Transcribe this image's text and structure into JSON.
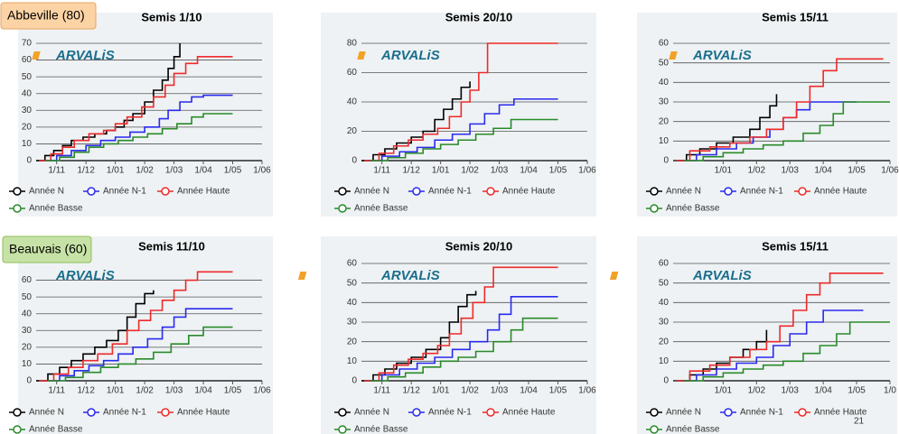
{
  "groups": [
    "Abbeville (80)",
    "Beauvais (60)"
  ],
  "logo": "ARVALiS",
  "page_number": "21",
  "chart_data": [
    {
      "type": "line",
      "step": true,
      "title": "Semis 1/10",
      "ylim": [
        0,
        70
      ],
      "yticks": [
        0,
        10,
        20,
        30,
        40,
        50,
        60,
        70
      ],
      "xlim": [
        0.3,
        8
      ],
      "xticks": [
        {
          "value": 1,
          "label": "1/11"
        },
        {
          "value": 2,
          "label": "1/12"
        },
        {
          "value": 3,
          "label": "1/01"
        },
        {
          "value": 4,
          "label": "1/02"
        },
        {
          "value": 5,
          "label": "1/03"
        },
        {
          "value": 6,
          "label": "1/04"
        },
        {
          "value": 7,
          "label": "1/05"
        },
        {
          "value": 8,
          "label": "1/06"
        }
      ],
      "grid": true,
      "series": [
        {
          "name": "Année N",
          "color": "#000000",
          "x": [
            0.3,
            0.6,
            0.9,
            1.2,
            1.5,
            1.9,
            2.3,
            2.7,
            3.0,
            3.3,
            3.6,
            4.0,
            4.3,
            4.6,
            4.8,
            5.0,
            5.2
          ],
          "values": [
            0,
            3,
            6,
            9,
            12,
            14,
            16,
            18,
            20,
            24,
            28,
            35,
            42,
            48,
            55,
            62,
            70
          ]
        },
        {
          "name": "Année N-1",
          "color": "#2a2aee",
          "x": [
            0.5,
            1.0,
            1.5,
            2.0,
            2.5,
            3.0,
            3.5,
            4.0,
            4.5,
            4.8,
            5.2,
            5.6,
            6.0,
            7.0
          ],
          "values": [
            0,
            3,
            6,
            9,
            12,
            14,
            17,
            20,
            25,
            30,
            35,
            38,
            39,
            39
          ]
        },
        {
          "name": "Année Haute",
          "color": "#ee2a2a",
          "x": [
            0.4,
            0.8,
            1.2,
            1.6,
            2.1,
            2.6,
            3.0,
            3.4,
            3.9,
            4.3,
            4.7,
            5.0,
            5.4,
            5.8,
            7.0
          ],
          "values": [
            0,
            4,
            8,
            12,
            16,
            18,
            22,
            26,
            32,
            38,
            45,
            52,
            58,
            62,
            62
          ]
        },
        {
          "name": "Année Basse",
          "color": "#2a8a2a",
          "x": [
            0.6,
            1.1,
            1.6,
            2.1,
            2.6,
            3.1,
            3.6,
            4.1,
            4.6,
            5.1,
            5.6,
            6.0,
            7.0
          ],
          "values": [
            0,
            2,
            5,
            8,
            10,
            12,
            14,
            16,
            19,
            22,
            26,
            28,
            28
          ]
        }
      ]
    },
    {
      "type": "line",
      "step": true,
      "title": "Semis 20/10",
      "ylim": [
        0,
        80
      ],
      "yticks": [
        0,
        20,
        40,
        60,
        80
      ],
      "xlim": [
        0.3,
        8
      ],
      "xticks": [
        {
          "value": 1,
          "label": "1/11"
        },
        {
          "value": 2,
          "label": "1/12"
        },
        {
          "value": 3,
          "label": "1/01"
        },
        {
          "value": 4,
          "label": "1/02"
        },
        {
          "value": 5,
          "label": "1/03"
        },
        {
          "value": 6,
          "label": "1/04"
        },
        {
          "value": 7,
          "label": "1/05"
        },
        {
          "value": 8,
          "label": "1/06"
        }
      ],
      "grid": true,
      "series": [
        {
          "name": "Année N",
          "color": "#000000",
          "x": [
            0.3,
            0.7,
            1.1,
            1.5,
            2.0,
            2.4,
            2.8,
            3.1,
            3.4,
            3.7,
            4.0
          ],
          "values": [
            0,
            4,
            8,
            12,
            16,
            20,
            28,
            35,
            42,
            50,
            54
          ]
        },
        {
          "name": "Année N-1",
          "color": "#2a2aee",
          "x": [
            0.5,
            1.0,
            1.6,
            2.2,
            2.8,
            3.4,
            4.0,
            4.5,
            5.0,
            5.5,
            7.0
          ],
          "values": [
            0,
            3,
            6,
            9,
            14,
            18,
            25,
            32,
            38,
            42,
            42
          ]
        },
        {
          "name": "Année Haute",
          "color": "#ee2a2a",
          "x": [
            0.4,
            0.9,
            1.4,
            1.9,
            2.4,
            2.9,
            3.3,
            3.7,
            4.0,
            4.3,
            4.6,
            7.0
          ],
          "values": [
            0,
            5,
            10,
            14,
            18,
            22,
            30,
            40,
            48,
            60,
            80,
            80
          ]
        },
        {
          "name": "Année Basse",
          "color": "#2a8a2a",
          "x": [
            0.6,
            1.2,
            1.8,
            2.4,
            3.0,
            3.6,
            4.2,
            4.8,
            5.4,
            7.0
          ],
          "values": [
            0,
            2,
            5,
            8,
            11,
            14,
            18,
            22,
            28,
            28
          ]
        }
      ]
    },
    {
      "type": "line",
      "step": true,
      "title": "Semis 15/11",
      "ylim": [
        0,
        60
      ],
      "yticks": [
        0,
        10,
        20,
        30,
        40,
        50,
        60
      ],
      "xlim": [
        1.5,
        8
      ],
      "xticks": [
        {
          "value": 3,
          "label": "1/01"
        },
        {
          "value": 4,
          "label": "1/02"
        },
        {
          "value": 5,
          "label": "1/03"
        },
        {
          "value": 6,
          "label": "1/04"
        },
        {
          "value": 7,
          "label": "1/05"
        },
        {
          "value": 8,
          "label": "1/06"
        }
      ],
      "grid": true,
      "series": [
        {
          "name": "Année N",
          "color": "#000000",
          "x": [
            1.6,
            1.9,
            2.3,
            2.8,
            3.3,
            3.8,
            4.1,
            4.4,
            4.6
          ],
          "values": [
            0,
            3,
            6,
            9,
            12,
            16,
            22,
            28,
            34
          ]
        },
        {
          "name": "Année N-1",
          "color": "#2a2aee",
          "x": [
            1.7,
            2.2,
            2.8,
            3.4,
            3.9,
            4.4,
            4.8,
            5.2,
            5.6,
            7.0
          ],
          "values": [
            0,
            3,
            6,
            9,
            12,
            16,
            22,
            26,
            30,
            30
          ]
        },
        {
          "name": "Année Haute",
          "color": "#ee2a2a",
          "x": [
            1.6,
            2.0,
            2.6,
            3.2,
            3.8,
            4.3,
            4.8,
            5.2,
            5.6,
            6.0,
            6.4,
            7.8
          ],
          "values": [
            0,
            5,
            7,
            9,
            12,
            16,
            22,
            30,
            38,
            46,
            52,
            52
          ]
        },
        {
          "name": "Année Basse",
          "color": "#2a8a2a",
          "x": [
            1.8,
            2.4,
            3.0,
            3.6,
            4.2,
            4.8,
            5.4,
            5.9,
            6.3,
            6.6,
            8.0
          ],
          "values": [
            0,
            2,
            4,
            6,
            8,
            10,
            14,
            18,
            24,
            30,
            30
          ]
        }
      ]
    },
    {
      "type": "line",
      "step": true,
      "title": "Semis 11/10",
      "ylim": [
        0,
        70
      ],
      "yticks": [
        0,
        10,
        20,
        30,
        40,
        50,
        60
      ],
      "xlim": [
        0.3,
        8
      ],
      "xticks": [
        {
          "value": 1,
          "label": "1/11"
        },
        {
          "value": 2,
          "label": "1/12"
        },
        {
          "value": 3,
          "label": "1/01"
        },
        {
          "value": 4,
          "label": "1/02"
        },
        {
          "value": 5,
          "label": "1/03"
        },
        {
          "value": 6,
          "label": "1/04"
        },
        {
          "value": 7,
          "label": "1/05"
        },
        {
          "value": 8,
          "label": "1/06"
        }
      ],
      "grid": true,
      "series": [
        {
          "name": "Année N",
          "color": "#000000",
          "x": [
            0.3,
            0.7,
            1.1,
            1.5,
            1.9,
            2.3,
            2.7,
            3.1,
            3.4,
            3.7,
            4.0,
            4.3
          ],
          "values": [
            0,
            4,
            8,
            12,
            16,
            20,
            24,
            30,
            38,
            46,
            52,
            54
          ]
        },
        {
          "name": "Année N-1",
          "color": "#2a2aee",
          "x": [
            0.6,
            1.1,
            1.6,
            2.1,
            2.6,
            3.1,
            3.6,
            4.1,
            4.6,
            5.0,
            5.4,
            7.0
          ],
          "values": [
            0,
            3,
            6,
            9,
            12,
            16,
            20,
            25,
            32,
            38,
            43,
            43
          ]
        },
        {
          "name": "Année Haute",
          "color": "#ee2a2a",
          "x": [
            0.4,
            0.9,
            1.4,
            1.9,
            2.4,
            2.9,
            3.4,
            3.8,
            4.2,
            4.6,
            5.0,
            5.4,
            5.8,
            7.0
          ],
          "values": [
            0,
            4,
            8,
            12,
            16,
            22,
            30,
            36,
            42,
            48,
            54,
            60,
            65,
            65
          ]
        },
        {
          "name": "Année Basse",
          "color": "#2a8a2a",
          "x": [
            0.7,
            1.3,
            1.9,
            2.5,
            3.1,
            3.7,
            4.3,
            4.9,
            5.5,
            6.0,
            7.0
          ],
          "values": [
            0,
            2,
            5,
            8,
            10,
            13,
            17,
            22,
            27,
            32,
            32
          ]
        }
      ]
    },
    {
      "type": "line",
      "step": true,
      "title": "Semis 20/10",
      "ylim": [
        0,
        60
      ],
      "yticks": [
        0,
        10,
        20,
        30,
        40,
        50,
        60
      ],
      "xlim": [
        0.3,
        8
      ],
      "xticks": [
        {
          "value": 1,
          "label": "1/11"
        },
        {
          "value": 2,
          "label": "1/12"
        },
        {
          "value": 3,
          "label": "1/01"
        },
        {
          "value": 4,
          "label": "1/02"
        },
        {
          "value": 5,
          "label": "1/03"
        },
        {
          "value": 6,
          "label": "1/04"
        },
        {
          "value": 7,
          "label": "1/05"
        },
        {
          "value": 8,
          "label": "1/06"
        }
      ],
      "grid": true,
      "series": [
        {
          "name": "Année N",
          "color": "#000000",
          "x": [
            0.3,
            0.7,
            1.1,
            1.5,
            2.0,
            2.5,
            3.0,
            3.3,
            3.6,
            3.9,
            4.2
          ],
          "values": [
            0,
            3,
            6,
            9,
            12,
            16,
            22,
            30,
            38,
            44,
            46
          ]
        },
        {
          "name": "Année N-1",
          "color": "#2a2aee",
          "x": [
            0.5,
            1.0,
            1.6,
            2.2,
            2.8,
            3.4,
            4.0,
            4.6,
            5.0,
            5.4,
            7.0
          ],
          "values": [
            0,
            3,
            6,
            9,
            12,
            16,
            20,
            26,
            34,
            43,
            43
          ]
        },
        {
          "name": "Année Haute",
          "color": "#ee2a2a",
          "x": [
            0.4,
            0.9,
            1.4,
            1.9,
            2.4,
            2.9,
            3.3,
            3.7,
            4.1,
            4.5,
            4.8,
            7.0
          ],
          "values": [
            0,
            4,
            8,
            11,
            14,
            18,
            24,
            32,
            40,
            48,
            58,
            58
          ]
        },
        {
          "name": "Année Basse",
          "color": "#2a8a2a",
          "x": [
            0.6,
            1.2,
            1.8,
            2.4,
            3.0,
            3.6,
            4.2,
            4.8,
            5.4,
            5.8,
            7.0
          ],
          "values": [
            0,
            2,
            4,
            7,
            10,
            12,
            15,
            20,
            26,
            32,
            32
          ]
        }
      ]
    },
    {
      "type": "line",
      "step": true,
      "title": "Semis 15/11",
      "ylim": [
        0,
        60
      ],
      "yticks": [
        0,
        10,
        20,
        30,
        40,
        50,
        60
      ],
      "xlim": [
        1.5,
        8
      ],
      "xticks": [
        {
          "value": 3,
          "label": "1/01"
        },
        {
          "value": 4,
          "label": "1/02"
        },
        {
          "value": 5,
          "label": "1/03"
        },
        {
          "value": 6,
          "label": "1/04"
        },
        {
          "value": 7,
          "label": "1/05"
        },
        {
          "value": 8,
          "label": "1/0"
        }
      ],
      "grid": true,
      "series": [
        {
          "name": "Année N",
          "color": "#000000",
          "x": [
            1.6,
            2.0,
            2.4,
            2.8,
            3.2,
            3.6,
            4.0,
            4.3
          ],
          "values": [
            0,
            3,
            6,
            9,
            12,
            16,
            20,
            26
          ]
        },
        {
          "name": "Année N-1",
          "color": "#2a2aee",
          "x": [
            1.7,
            2.2,
            2.8,
            3.4,
            4.0,
            4.5,
            5.0,
            5.5,
            6.0,
            7.2
          ],
          "values": [
            0,
            3,
            6,
            9,
            12,
            18,
            24,
            30,
            36,
            36
          ]
        },
        {
          "name": "Année Haute",
          "color": "#ee2a2a",
          "x": [
            1.6,
            2.0,
            2.6,
            3.2,
            3.8,
            4.3,
            4.7,
            5.1,
            5.5,
            5.9,
            6.2,
            7.8
          ],
          "values": [
            0,
            5,
            8,
            12,
            16,
            20,
            28,
            36,
            44,
            50,
            55,
            55
          ]
        },
        {
          "name": "Année Basse",
          "color": "#2a8a2a",
          "x": [
            1.8,
            2.4,
            3.0,
            3.6,
            4.2,
            4.8,
            5.4,
            5.9,
            6.4,
            6.8,
            8.0
          ],
          "values": [
            0,
            2,
            4,
            6,
            8,
            10,
            14,
            18,
            24,
            30,
            30
          ]
        }
      ]
    }
  ]
}
